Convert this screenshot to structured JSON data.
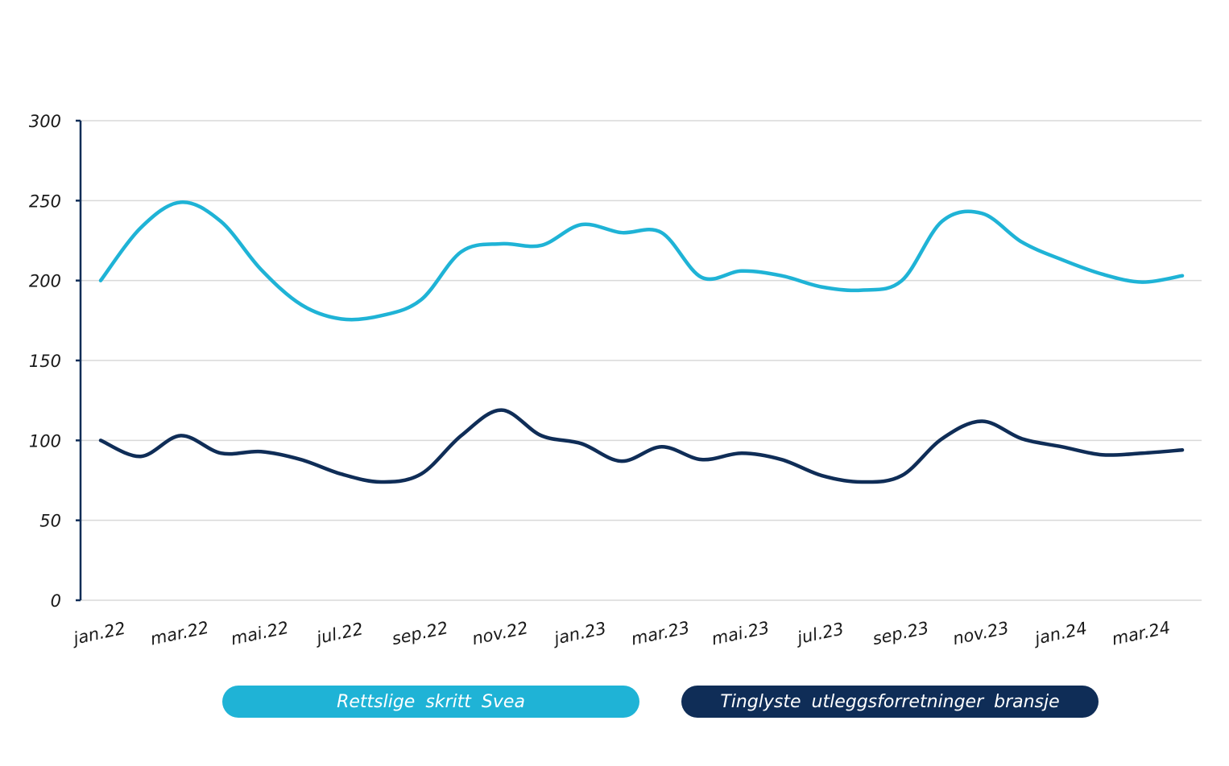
{
  "chart_data": {
    "type": "line",
    "categories": [
      "jan.22",
      "feb.22",
      "mar.22",
      "apr.22",
      "mai.22",
      "jun.22",
      "jul.22",
      "aug.22",
      "sep.22",
      "okt.22",
      "nov.22",
      "des.22",
      "jan.23",
      "feb.23",
      "mar.23",
      "apr.23",
      "mai.23",
      "jun.23",
      "jul.23",
      "aug.23",
      "sep.23",
      "okt.23",
      "nov.23",
      "des.23",
      "jan.24",
      "feb.24",
      "mar.24",
      "apr.24"
    ],
    "tick_labels": [
      "jan.22",
      "mar.22",
      "mai.22",
      "jul.22",
      "sep.22",
      "nov.22",
      "jan.23",
      "mar.23",
      "mai.23",
      "jul.23",
      "sep.23",
      "nov.23",
      "jan.24",
      "mar.24"
    ],
    "series": [
      {
        "name": "Rettslige  skritt Svea",
        "color": "#1fb3d6",
        "values": [
          200,
          233,
          249,
          237,
          207,
          185,
          176,
          178,
          188,
          218,
          223,
          222,
          235,
          230,
          230,
          202,
          206,
          203,
          196,
          194,
          200,
          237,
          242,
          224,
          213,
          204,
          199,
          203
        ]
      },
      {
        "name": "Tinglyste  utleggsforretninger  bransje",
        "color": "#0f2d57",
        "values": [
          100,
          90,
          103,
          92,
          93,
          88,
          79,
          74,
          79,
          103,
          119,
          103,
          98,
          87,
          96,
          88,
          92,
          88,
          78,
          74,
          78,
          101,
          112,
          101,
          96,
          91,
          92,
          94
        ]
      }
    ],
    "ylim": [
      0,
      300
    ],
    "yticks": [
      0,
      50,
      100,
      150,
      200,
      250,
      300
    ],
    "grid": true,
    "legend_position": "bottom"
  }
}
